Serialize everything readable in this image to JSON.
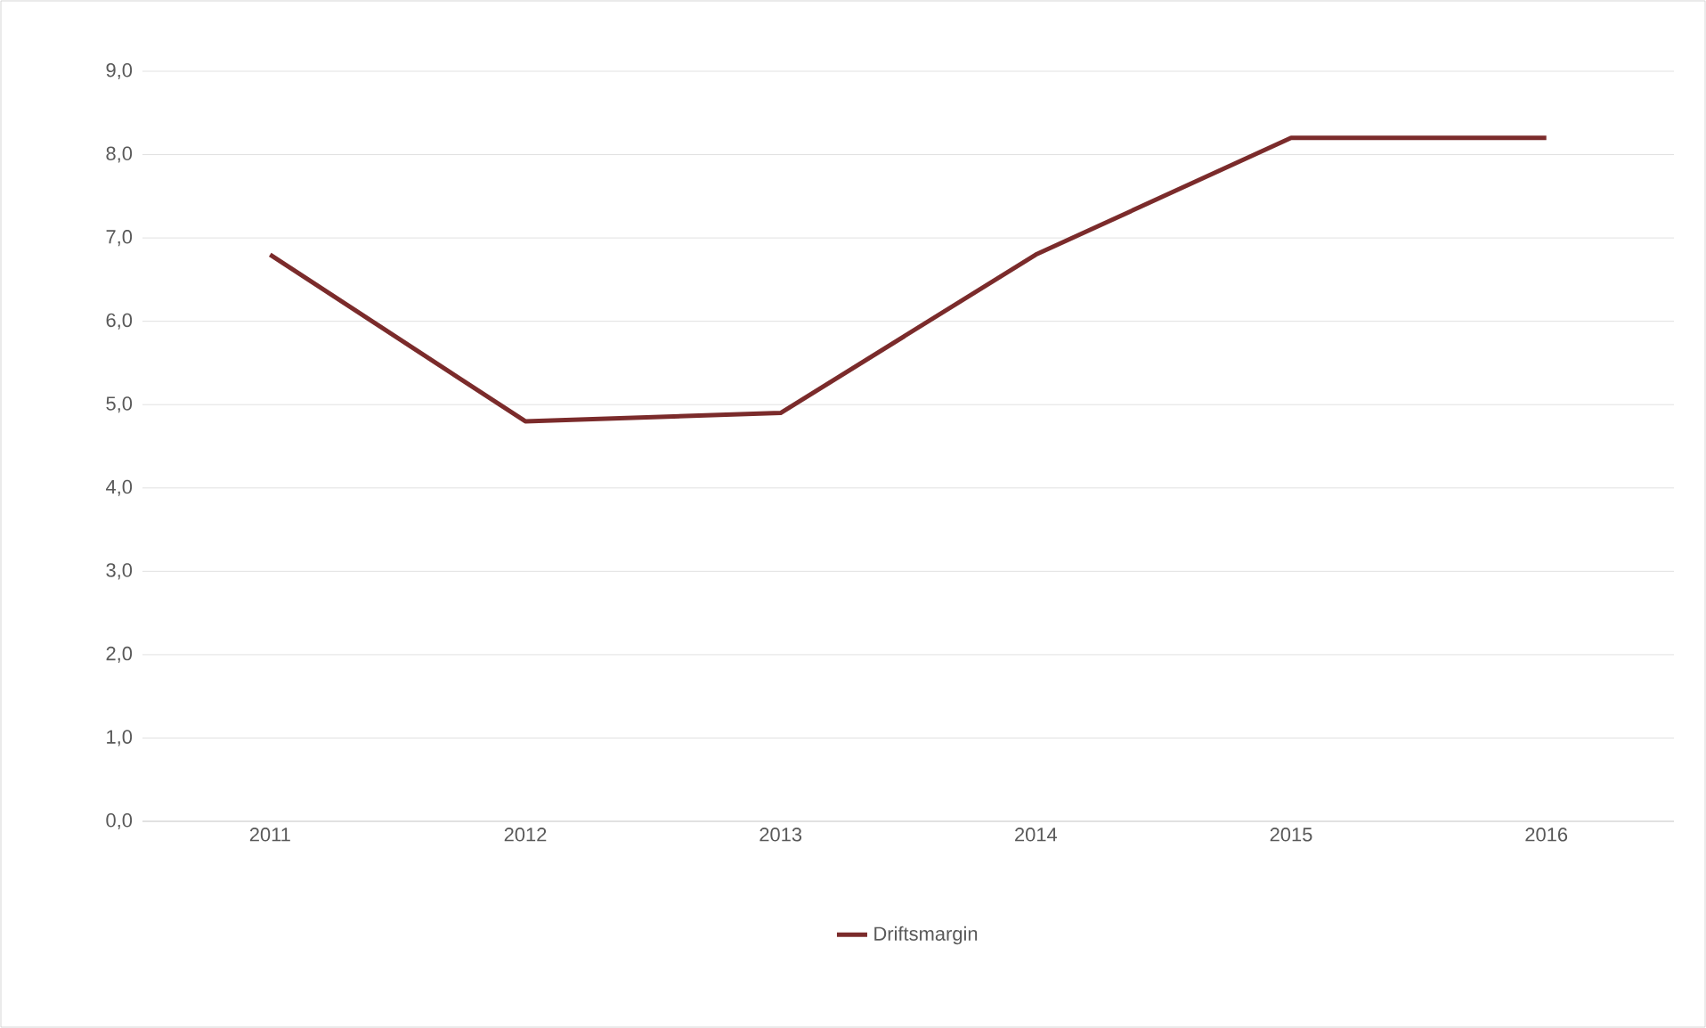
{
  "chart_data": {
    "type": "line",
    "categories": [
      "2011",
      "2012",
      "2013",
      "2014",
      "2015",
      "2016"
    ],
    "series": [
      {
        "name": "Driftsmargin",
        "color": "#7b2b2b",
        "values": [
          6.8,
          4.8,
          4.9,
          6.8,
          8.2,
          8.2
        ]
      }
    ],
    "ylim": [
      0,
      9
    ],
    "yticks": [
      {
        "value": 0,
        "label": "0,0"
      },
      {
        "value": 1,
        "label": "1,0"
      },
      {
        "value": 2,
        "label": "2,0"
      },
      {
        "value": 3,
        "label": "3,0"
      },
      {
        "value": 4,
        "label": "4,0"
      },
      {
        "value": 5,
        "label": "5,0"
      },
      {
        "value": 6,
        "label": "6,0"
      },
      {
        "value": 7,
        "label": "7,0"
      },
      {
        "value": 8,
        "label": "8,0"
      },
      {
        "value": 9,
        "label": "9,0"
      }
    ],
    "grid": "y",
    "legend": "bottom",
    "marker": "none",
    "line_style": "solid"
  }
}
